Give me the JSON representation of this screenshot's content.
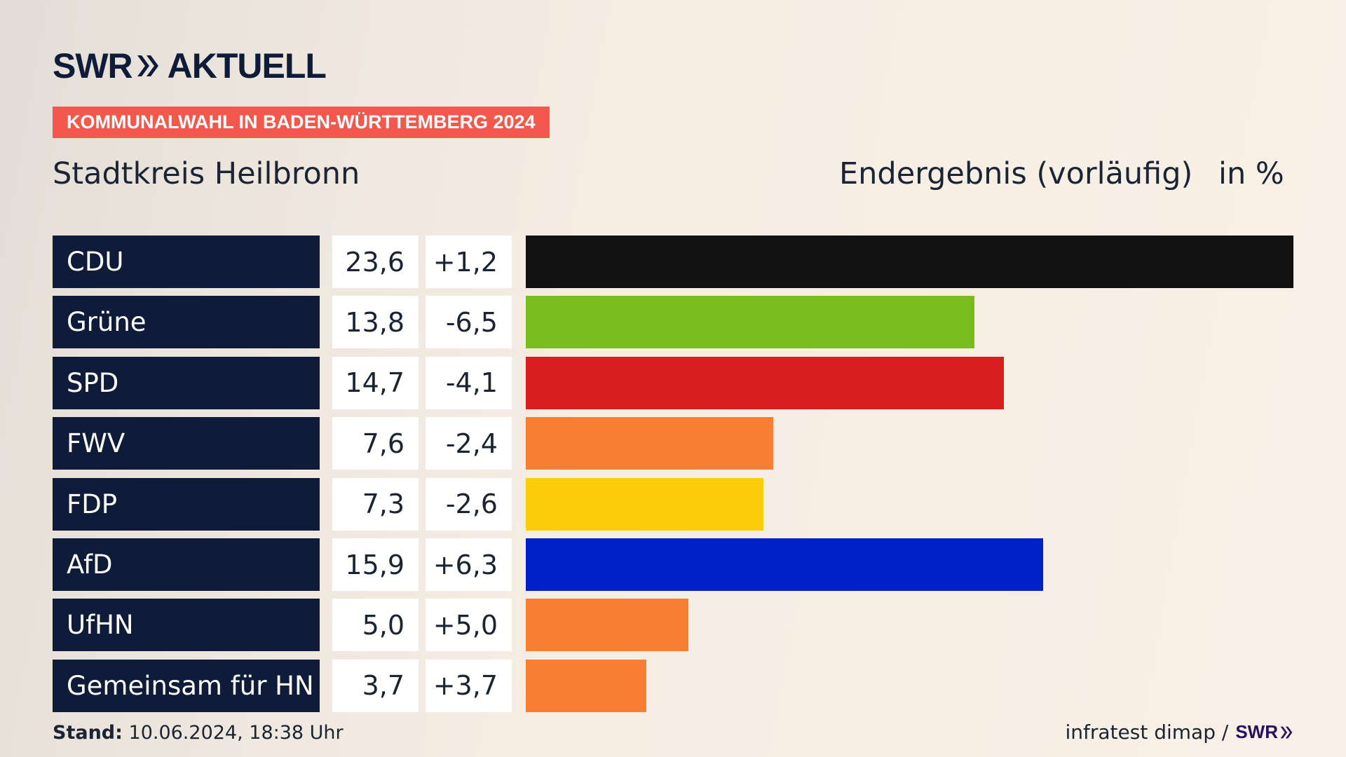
{
  "brand": {
    "logo_left": "SWR",
    "logo_right": "AKTUELL",
    "footer_logo": "SWR",
    "color": "#0e1c3a"
  },
  "badge": "KOMMUNALWAHL IN BADEN-WÜRTTEMBERG 2024",
  "region": "Stadtkreis Heilbronn",
  "status": "Endergebnis (vorläufig)",
  "unit": "in %",
  "footer": {
    "stand_label": "Stand:",
    "stand_value": "10.06.2024, 18:38 Uhr",
    "source": "infratest dimap /"
  },
  "chart_data": {
    "type": "bar",
    "orientation": "horizontal",
    "categories": [
      "CDU",
      "Grüne",
      "SPD",
      "FWV",
      "FDP",
      "AfD",
      "UfHN",
      "Gemeinsam für HN"
    ],
    "values": [
      23.6,
      13.8,
      14.7,
      7.6,
      7.3,
      15.9,
      5.0,
      3.7
    ],
    "value_labels": [
      "23,6",
      "13,8",
      "14,7",
      "7,6",
      "7,3",
      "15,9",
      "5,0",
      "3,7"
    ],
    "differences": [
      1.2,
      -6.5,
      -4.1,
      -2.4,
      -2.6,
      6.3,
      5.0,
      3.7
    ],
    "difference_labels": [
      "+1,2",
      "-6,5",
      "-4,1",
      "-2,4",
      "-2,6",
      "+6,3",
      "+5,0",
      "+3,7"
    ],
    "colors": [
      "#111111",
      "#79bd1d",
      "#d7201e",
      "#f77e32",
      "#fdcd0c",
      "#0021c8",
      "#f77e32",
      "#f77e32"
    ],
    "xlim": [
      0,
      23.6
    ]
  }
}
